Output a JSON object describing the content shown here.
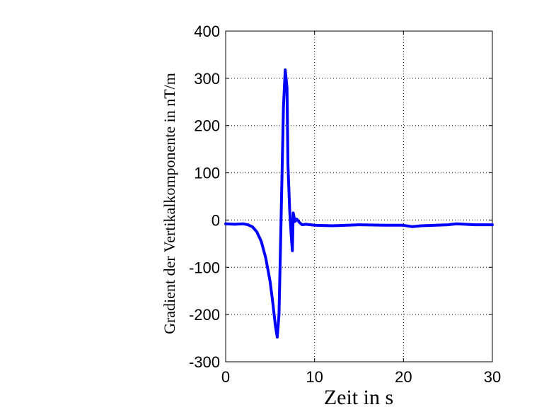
{
  "chart_data": {
    "type": "line",
    "xlabel": "Zeit in s",
    "ylabel": "Gradient der Vertikalkomponente in nT/m",
    "xlim": [
      0,
      30
    ],
    "ylim": [
      -300,
      400
    ],
    "x_ticks": [
      0,
      10,
      20,
      30
    ],
    "y_ticks": [
      -300,
      -200,
      -100,
      0,
      100,
      200,
      300,
      400
    ],
    "x_tick_labels": [
      "0",
      "10",
      "20",
      "30"
    ],
    "y_tick_labels": [
      "-300",
      "-200",
      "-100",
      "0",
      "100",
      "200",
      "300",
      "400"
    ],
    "grid": true,
    "series": [
      {
        "color": "#0000ff",
        "x": [
          0,
          1,
          2,
          2.5,
          3,
          3.5,
          4,
          4.5,
          5,
          5.3,
          5.6,
          5.8,
          6.0,
          6.2,
          6.5,
          6.7,
          6.9,
          7.0,
          7.2,
          7.4,
          7.5,
          7.6,
          7.8,
          8.0,
          8.3,
          8.6,
          9,
          10,
          12,
          15,
          18,
          20,
          21,
          22,
          25,
          26,
          28,
          30
        ],
        "y": [
          -8,
          -9,
          -8,
          -10,
          -14,
          -25,
          -45,
          -80,
          -130,
          -175,
          -225,
          -248,
          -200,
          -30,
          240,
          318,
          280,
          120,
          20,
          -40,
          -65,
          15,
          -3,
          2,
          -5,
          -10,
          -9,
          -11,
          -12,
          -10,
          -11,
          -11,
          -14,
          -12,
          -10,
          -8,
          -10,
          -10
        ]
      }
    ]
  }
}
